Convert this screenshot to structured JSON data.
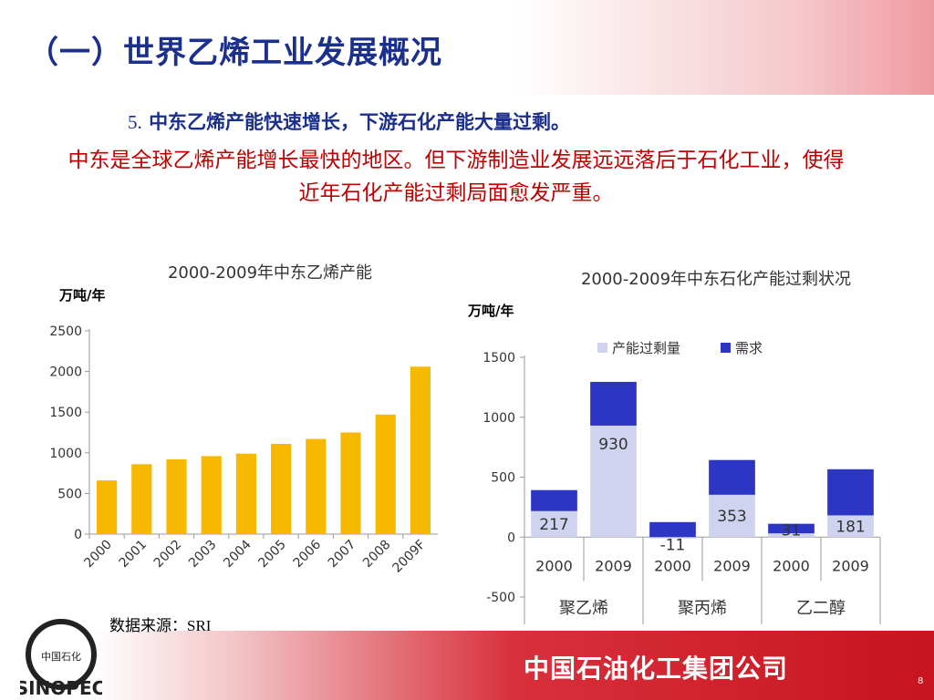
{
  "header": {
    "title": "（一）世界乙烯工业发展概况",
    "point_number": "5.",
    "point_text": "中东乙烯产能快速增长，下游石化产能大量过剩。",
    "description": "中东是全球乙烯产能增长最快的地区。但下游制造业发展远远落后于石化工业，使得近年石化产能过剩局面愈发严重。"
  },
  "footer": {
    "source": "数据来源：SRI",
    "company": "中国石油化工集团公司",
    "page_number": "8",
    "logo_text": "中国石化"
  },
  "colors": {
    "title_blue": "#1b2f8c",
    "highlight_red": "#c00000",
    "bar_gold": "#f7b800",
    "surplus": "#cfd3ef",
    "demand": "#2d35c4"
  },
  "chart_data": [
    {
      "type": "bar",
      "title": "2000-2009年中东乙烯产能",
      "ylabel": "万吨/年",
      "categories": [
        "2000",
        "2001",
        "2002",
        "2003",
        "2004",
        "2005",
        "2006",
        "2007",
        "2008",
        "2009F"
      ],
      "values": [
        660,
        860,
        920,
        960,
        990,
        1110,
        1170,
        1250,
        1470,
        2060
      ],
      "ylim": [
        0,
        2500
      ],
      "yticks": [
        "2500",
        "2000",
        "1500",
        "1000",
        "500",
        "0"
      ],
      "grid": false,
      "legend": "none"
    },
    {
      "type": "bar",
      "stacked": true,
      "title": "2000-2009年中东石化产能过剩状况",
      "ylabel": "万吨/年",
      "categories": [
        "2000",
        "2009",
        "2000",
        "2009",
        "2000",
        "2009"
      ],
      "groups": [
        "聚乙烯",
        "聚丙烯",
        "乙二醇"
      ],
      "series": [
        {
          "name": "产能过剩量",
          "values": [
            217,
            930,
            -11,
            353,
            31,
            181
          ]
        },
        {
          "name": "需求",
          "values": [
            175,
            365,
            125,
            290,
            80,
            385
          ]
        }
      ],
      "data_labels": [
        "217",
        "930",
        "-11",
        "353",
        "31",
        "181"
      ],
      "ylim": [
        -500,
        1500
      ],
      "yticks": [
        "1500",
        "1000",
        "500",
        "0",
        "-500"
      ],
      "grid": false,
      "legend": "top"
    }
  ]
}
